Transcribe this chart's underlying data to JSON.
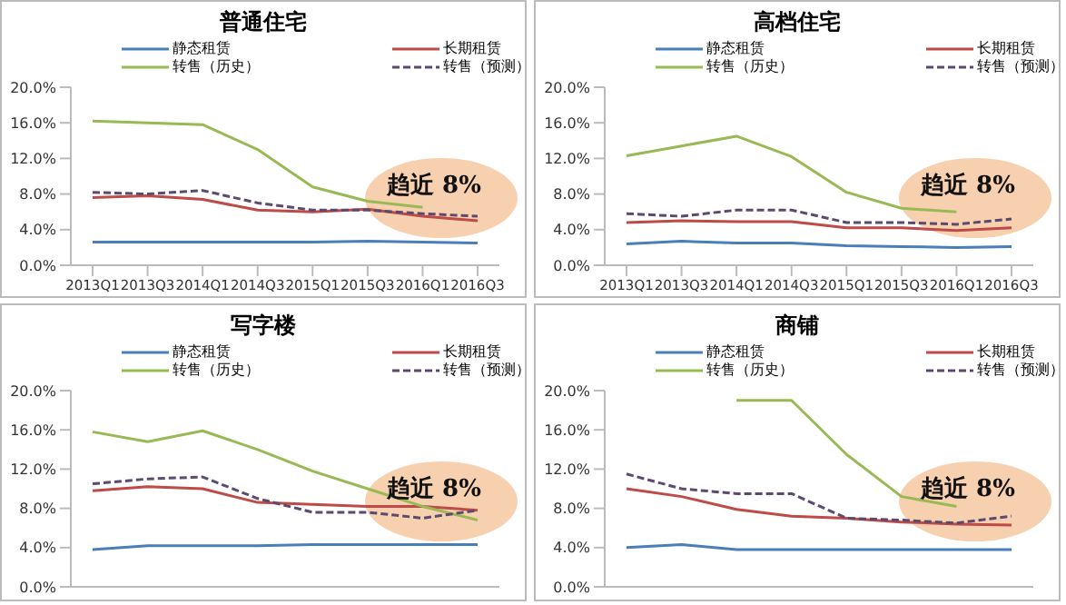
{
  "chart_data": [
    {
      "type": "line",
      "title": "普通住宅",
      "categories": [
        "2013Q1",
        "2013Q3",
        "2014Q1",
        "2014Q3",
        "2015Q1",
        "2015Q3",
        "2016Q1",
        "2016Q3"
      ],
      "ylim": [
        0,
        20
      ],
      "yticks": [
        {
          "value": 0,
          "label": "0.0%"
        },
        {
          "value": 4,
          "label": "4.0%"
        },
        {
          "value": 8,
          "label": "8.0%"
        },
        {
          "value": 12,
          "label": "12.0%"
        },
        {
          "value": 16,
          "label": "16.0%"
        },
        {
          "value": 20,
          "label": "20.0%"
        }
      ],
      "legend": "top",
      "grid": false,
      "marker": "none",
      "annotations": [
        "趋近 8%"
      ],
      "series": [
        {
          "name": "静态租赁",
          "color": "#4a7ebb",
          "values": [
            2.6,
            2.6,
            2.6,
            2.6,
            2.6,
            2.7,
            2.6,
            2.5
          ]
        },
        {
          "name": "长期租赁",
          "color": "#be4b48",
          "values": [
            7.6,
            7.8,
            7.4,
            6.2,
            6.0,
            6.3,
            5.5,
            5.0
          ]
        },
        {
          "name": "转售（历史）",
          "color": "#98b954",
          "values": [
            16.2,
            16.0,
            15.8,
            13.0,
            8.8,
            7.2,
            6.5,
            null
          ]
        },
        {
          "name": "转售（预测）",
          "color": "#5b4a6e",
          "line_style": "dashed",
          "values": [
            8.2,
            8.0,
            8.4,
            7.0,
            6.2,
            6.2,
            5.8,
            5.5
          ]
        }
      ]
    },
    {
      "type": "line",
      "title": "高档住宅",
      "categories": [
        "2013Q1",
        "2013Q3",
        "2014Q1",
        "2014Q3",
        "2015Q1",
        "2015Q3",
        "2016Q1",
        "2016Q3"
      ],
      "ylim": [
        0,
        20
      ],
      "yticks": [
        {
          "value": 0,
          "label": "0.0%"
        },
        {
          "value": 4,
          "label": "4.0%"
        },
        {
          "value": 8,
          "label": "8.0%"
        },
        {
          "value": 12,
          "label": "12.0%"
        },
        {
          "value": 16,
          "label": "16.0%"
        },
        {
          "value": 20,
          "label": "20.0%"
        }
      ],
      "legend": "top",
      "grid": false,
      "marker": "none",
      "annotations": [
        "趋近 8%"
      ],
      "series": [
        {
          "name": "静态租赁",
          "color": "#4a7ebb",
          "values": [
            2.4,
            2.7,
            2.5,
            2.5,
            2.2,
            2.1,
            2.0,
            2.1
          ]
        },
        {
          "name": "长期租赁",
          "color": "#be4b48",
          "values": [
            4.8,
            5.0,
            4.9,
            4.9,
            4.2,
            4.2,
            3.9,
            4.2
          ]
        },
        {
          "name": "转售（历史）",
          "color": "#98b954",
          "values": [
            12.3,
            13.4,
            14.5,
            12.2,
            8.2,
            6.4,
            6.0,
            null
          ]
        },
        {
          "name": "转售（预测）",
          "color": "#5b4a6e",
          "line_style": "dashed",
          "values": [
            5.8,
            5.5,
            6.2,
            6.2,
            4.8,
            4.8,
            4.6,
            5.2
          ]
        }
      ]
    },
    {
      "type": "line",
      "title": "写字楼",
      "categories": [
        null,
        null,
        null,
        null,
        null,
        null,
        null,
        null
      ],
      "tick_labels": "y",
      "ylim": [
        0,
        20
      ],
      "yticks": [
        {
          "value": 0,
          "label": "0.0%"
        },
        {
          "value": 4,
          "label": "4.0%"
        },
        {
          "value": 8,
          "label": "8.0%"
        },
        {
          "value": 12,
          "label": "12.0%"
        },
        {
          "value": 16,
          "label": "16.0%"
        },
        {
          "value": 20,
          "label": "20.0%"
        }
      ],
      "legend": "top",
      "grid": false,
      "marker": "none",
      "annotations": [
        "趋近 8%"
      ],
      "series": [
        {
          "name": "静态租赁",
          "color": "#4a7ebb",
          "values": [
            3.8,
            4.2,
            4.2,
            4.2,
            4.3,
            4.3,
            4.3,
            4.3
          ]
        },
        {
          "name": "长期租赁",
          "color": "#be4b48",
          "values": [
            9.8,
            10.2,
            10.0,
            8.6,
            8.4,
            8.2,
            8.2,
            7.8
          ]
        },
        {
          "name": "转售（历史）",
          "color": "#98b954",
          "values": [
            15.8,
            14.8,
            15.9,
            14.0,
            11.8,
            10.0,
            8.2,
            6.8
          ]
        },
        {
          "name": "转售（预测）",
          "color": "#5b4a6e",
          "line_style": "dashed",
          "values": [
            10.5,
            11.0,
            11.2,
            9.0,
            7.6,
            7.6,
            7.0,
            7.8
          ]
        }
      ]
    },
    {
      "type": "line",
      "title": "商铺",
      "categories": [
        null,
        null,
        null,
        null,
        null,
        null,
        null,
        null
      ],
      "tick_labels": "y",
      "ylim": [
        0,
        20
      ],
      "yticks": [
        {
          "value": 0,
          "label": "0.0%"
        },
        {
          "value": 4,
          "label": "4.0%"
        },
        {
          "value": 8,
          "label": "8.0%"
        },
        {
          "value": 12,
          "label": "12.0%"
        },
        {
          "value": 16,
          "label": "16.0%"
        },
        {
          "value": 20,
          "label": "20.0%"
        }
      ],
      "legend": "top",
      "grid": false,
      "marker": "none",
      "annotations": [
        "趋近 8%"
      ],
      "series": [
        {
          "name": "静态租赁",
          "color": "#4a7ebb",
          "values": [
            4.0,
            4.3,
            3.8,
            3.8,
            3.8,
            3.8,
            3.8,
            3.8
          ]
        },
        {
          "name": "长期租赁",
          "color": "#be4b48",
          "values": [
            10.0,
            9.2,
            7.9,
            7.2,
            7.0,
            6.6,
            6.4,
            6.3
          ]
        },
        {
          "name": "转售（历史）",
          "color": "#98b954",
          "values": [
            null,
            null,
            19.0,
            19.0,
            13.5,
            9.2,
            8.2,
            null
          ]
        },
        {
          "name": "转售（预测）",
          "color": "#5b4a6e",
          "line_style": "dashed",
          "values": [
            11.5,
            10.0,
            9.5,
            9.5,
            7.0,
            6.8,
            6.5,
            7.2
          ]
        }
      ]
    }
  ]
}
